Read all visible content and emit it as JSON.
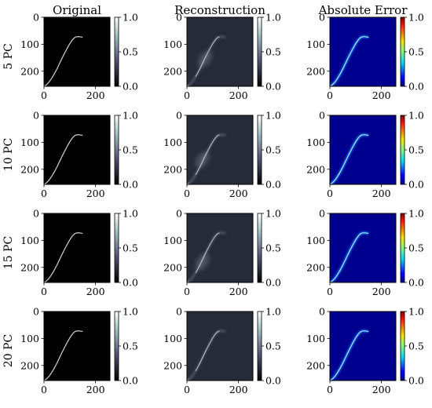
{
  "columns": [
    "Original",
    "Reconstruction",
    "Absolute Error"
  ],
  "rows": [
    "5 PC",
    "10 PC",
    "15 PC",
    "20 PC"
  ],
  "colors": {
    "axes_frame": "#000000",
    "error_background": "#00008f",
    "reconstruction_background": "#272a39",
    "curve_original": "#c7d7dd",
    "curve_reconstruction": "#c8d2d8"
  },
  "chart_data": {
    "type": "heatmap",
    "description_cols": [
      "Original",
      "Reconstruction",
      "Absolute Error"
    ],
    "row_labels": [
      "5 PC",
      "10 PC",
      "15 PC",
      "20 PC"
    ],
    "image_size": [
      256,
      256
    ],
    "x_ticks": [
      0,
      200
    ],
    "y_ticks": [
      0,
      100,
      200
    ],
    "colorbar_ticks": [
      0.0,
      0.5,
      1.0
    ],
    "colorbar_tick_labels": [
      "0.0",
      "0.5",
      "1.0"
    ],
    "colorbar_range": [
      0.0,
      1.0
    ],
    "colormaps": [
      "bone",
      "bone",
      "jet"
    ],
    "curve": {
      "x": [
        2,
        10,
        20,
        30,
        40,
        50,
        60,
        70,
        80,
        90,
        100,
        110,
        118,
        124,
        130,
        136,
        142,
        150
      ],
      "y": [
        255,
        250,
        240,
        226,
        210,
        192,
        172,
        152,
        133,
        115,
        98,
        84,
        76,
        73,
        72,
        72,
        73,
        74
      ]
    },
    "reconstruction_blur": [
      {
        "pc": "5 PC",
        "blob": [
          70,
          155
        ]
      },
      {
        "pc": "10 PC",
        "blob": [
          60,
          165
        ]
      },
      {
        "pc": "15 PC",
        "blob": [
          60,
          180
        ]
      },
      {
        "pc": "20 PC",
        "blob": null
      }
    ]
  }
}
